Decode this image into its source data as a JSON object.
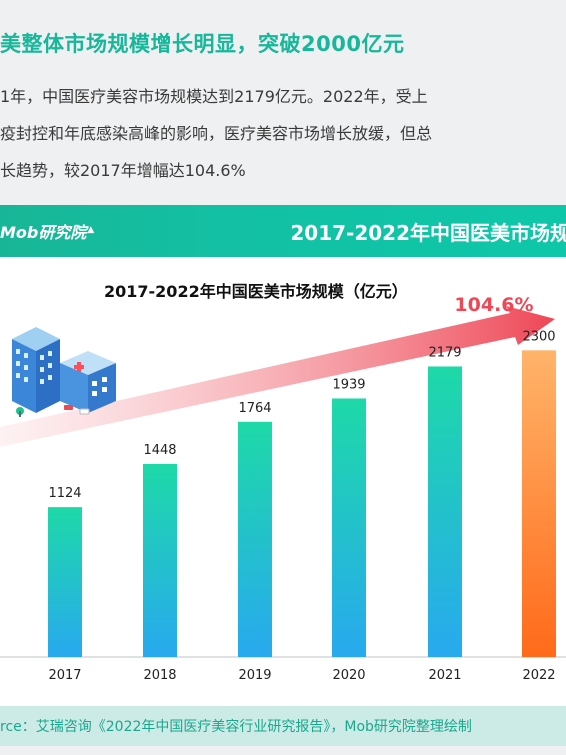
{
  "headline": "美整体市场规模增长明显，突破2000亿元",
  "paragraph_lines": [
    "1年，中国医疗美容市场规模达到2179亿元。2022年，受上",
    "疫封控和年底感染高峰的影响，医疗美容市场增长放缓，但总",
    "长趋势，较2017年增幅达104.6%"
  ],
  "brand": {
    "name": "Mob研究院"
  },
  "band_title": "2017-2022年中国医美市场规",
  "chart_title": "2017-2022年中国医美市场规模（亿元）",
  "growth_label": "104.6%",
  "source": "rce：艾瑞咨询《2022年中国医疗美容行业研究报告》，Mob研究院整理绘制",
  "colors": {
    "accent": "#16b79a",
    "bar_top": "#1ed9a8",
    "bar_bottom": "#28a9ef",
    "highlight_top": "#ffb46a",
    "highlight_bottom": "#ff6a1a",
    "arrow": "#ef4b57"
  },
  "chart_data": {
    "type": "bar",
    "title": "2017-2022年中国医美市场规模（亿元）",
    "categories": [
      "2017",
      "2018",
      "2019",
      "2020",
      "2021",
      "2022"
    ],
    "values": [
      1124,
      1448,
      1764,
      1939,
      2179,
      2300
    ],
    "ylim": [
      0,
      2700
    ],
    "highlight": "2022",
    "annotation": "104.6%",
    "grid": false
  }
}
